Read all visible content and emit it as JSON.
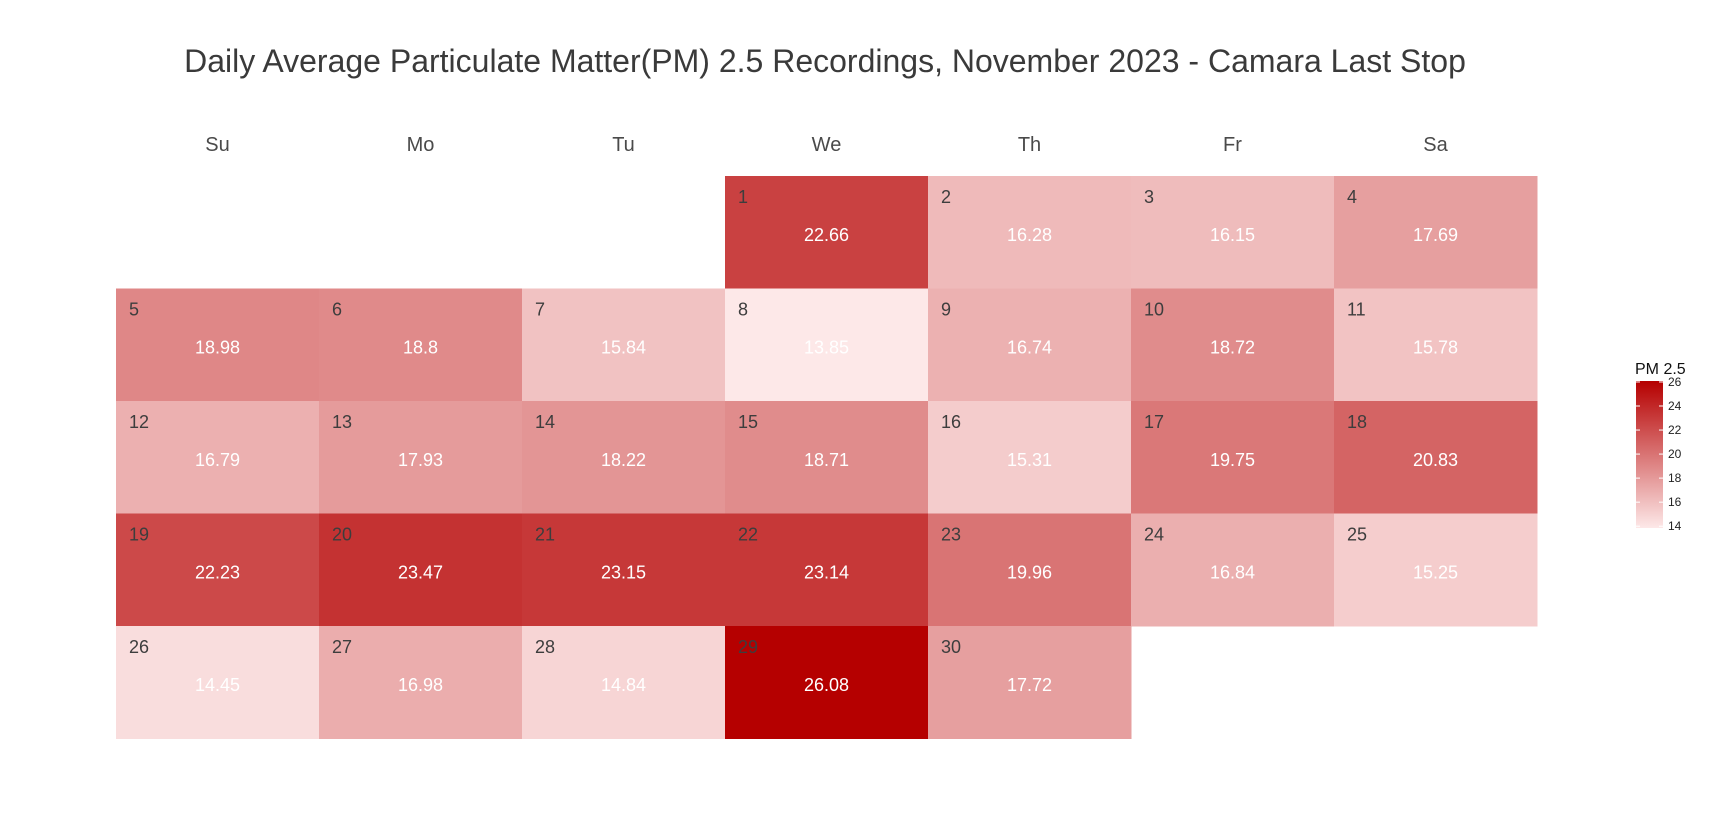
{
  "chart_data": {
    "type": "heatmap",
    "title": "Daily Average Particulate Matter(PM) 2.5 Recordings, November 2023 - Camara Last Stop",
    "weekdays": [
      "Su",
      "Mo",
      "Tu",
      "We",
      "Th",
      "Fr",
      "Sa"
    ],
    "first_weekday_index": 3,
    "days": [
      {
        "day": "1",
        "value": 22.66
      },
      {
        "day": "2",
        "value": 16.28
      },
      {
        "day": "3",
        "value": 16.15
      },
      {
        "day": "4",
        "value": 17.69
      },
      {
        "day": "5",
        "value": 18.98
      },
      {
        "day": "6",
        "value": 18.8
      },
      {
        "day": "7",
        "value": 15.84
      },
      {
        "day": "8",
        "value": 13.85
      },
      {
        "day": "9",
        "value": 16.74
      },
      {
        "day": "10",
        "value": 18.72
      },
      {
        "day": "11",
        "value": 15.78
      },
      {
        "day": "12",
        "value": 16.79
      },
      {
        "day": "13",
        "value": 17.93
      },
      {
        "day": "14",
        "value": 18.22
      },
      {
        "day": "15",
        "value": 18.71
      },
      {
        "day": "16",
        "value": 15.31
      },
      {
        "day": "17",
        "value": 19.75
      },
      {
        "day": "18",
        "value": 20.83
      },
      {
        "day": "19",
        "value": 22.23
      },
      {
        "day": "20",
        "value": 23.47
      },
      {
        "day": "21",
        "value": 23.15
      },
      {
        "day": "22",
        "value": 23.14
      },
      {
        "day": "23",
        "value": 19.96
      },
      {
        "day": "24",
        "value": 16.84
      },
      {
        "day": "25",
        "value": 15.25
      },
      {
        "day": "26",
        "value": 14.45
      },
      {
        "day": "27",
        "value": 16.98
      },
      {
        "day": "28",
        "value": 14.84
      },
      {
        "day": "29",
        "value": 26.08
      },
      {
        "day": "30",
        "value": 17.72
      }
    ],
    "colorscale": {
      "min": 13.85,
      "max": 26.08,
      "low_color": "#fde8e8",
      "high_color": "#b50000"
    },
    "legend": {
      "title": "PM 2.5",
      "ticks": [
        "14",
        "16",
        "18",
        "20",
        "22",
        "24",
        "26"
      ],
      "position": "right"
    }
  }
}
